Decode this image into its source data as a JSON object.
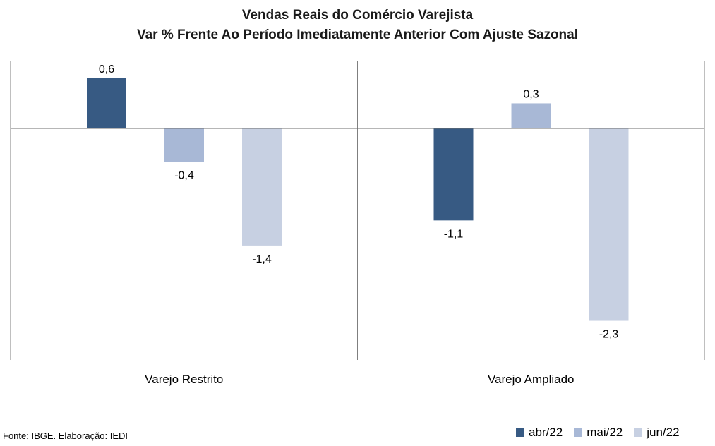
{
  "title_line1": "Vendas Reais do Comércio Varejista",
  "title_line2": "Var % Frente Ao Período Imediatamente Anterior Com Ajuste Sazonal",
  "source": "Fonte: IBGE. Elaboração: IEDI",
  "colors": {
    "abr22": "#375a83",
    "mai22": "#a8b8d6",
    "jun22": "#c7d0e2",
    "axis": "#7f7f7f"
  },
  "chart_data": {
    "type": "bar",
    "categories": [
      "Varejo Restrito",
      "Varejo Ampliado"
    ],
    "series": [
      {
        "name": "abr/22",
        "values": [
          0.6,
          -1.1
        ]
      },
      {
        "name": "mai/22",
        "values": [
          -0.4,
          0.3
        ]
      },
      {
        "name": "jun/22",
        "values": [
          -1.4,
          -2.3
        ]
      }
    ],
    "value_labels": [
      [
        "0,6",
        "-1,1"
      ],
      [
        "-0,4",
        "0,3"
      ],
      [
        "-1,4",
        "-2,3"
      ]
    ],
    "ylim": [
      -2.7,
      0.8
    ],
    "grid": false,
    "legend_position": "bottom-right",
    "title": "Vendas Reais do Comércio Varejista / Var % Frente Ao Período Imediatamente Anterior Com Ajuste Sazonal"
  }
}
